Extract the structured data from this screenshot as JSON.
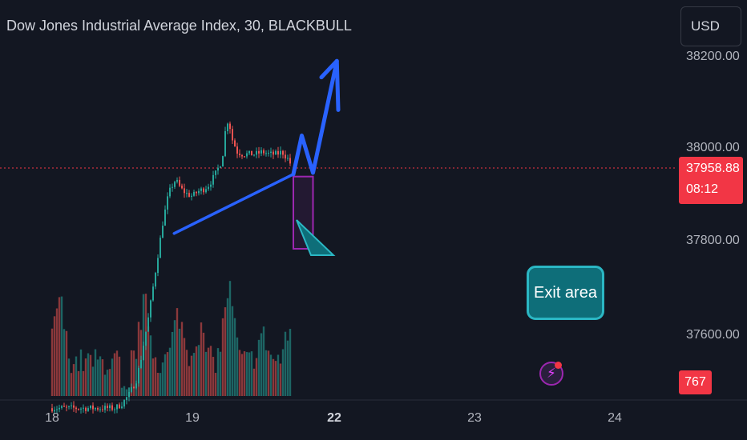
{
  "header": {
    "title": "Dow Jones Industrial Average Index, 30, BLACKBULL"
  },
  "currency_button": {
    "label": "USD"
  },
  "price_axis": {
    "ticks": [
      "38200.00",
      "38000.00",
      "37800.00",
      "37600.00"
    ]
  },
  "last_price": {
    "value": "37958.88",
    "countdown": "08:12"
  },
  "volume_label": {
    "value": "767"
  },
  "time_axis": {
    "ticks": [
      {
        "label": "18",
        "bold": false
      },
      {
        "label": "19",
        "bold": false
      },
      {
        "label": "22",
        "bold": true
      },
      {
        "label": "23",
        "bold": false
      },
      {
        "label": "24",
        "bold": false
      }
    ]
  },
  "annotation": {
    "text": "Exit area"
  },
  "colors": {
    "background": "#131722",
    "up": "#26a69a",
    "down": "#ef5350",
    "trendline": "#2962ff",
    "exit_zone_border": "#9c27b0",
    "callout": "#0e6e79"
  },
  "chart_data": {
    "type": "candlestick",
    "title": "Dow Jones Industrial Average Index, 30, BLACKBULL",
    "y_axis_ticks": [
      38200,
      38000,
      37800,
      37600
    ],
    "ylim": [
      37450,
      38250
    ],
    "x_ticks": [
      "18",
      "19",
      "22",
      "23",
      "24"
    ],
    "last_price": 37958.88,
    "last_volume": 767,
    "price_path": [
      [
        0,
        37440
      ],
      [
        0.45,
        37440
      ],
      [
        0.5,
        37450
      ],
      [
        0.55,
        37470
      ],
      [
        0.6,
        37500
      ],
      [
        0.63,
        37540
      ],
      [
        0.66,
        37590
      ],
      [
        0.69,
        37640
      ],
      [
        0.71,
        37680
      ],
      [
        0.73,
        37720
      ],
      [
        0.75,
        37760
      ],
      [
        0.77,
        37800
      ],
      [
        0.79,
        37840
      ],
      [
        0.81,
        37870
      ],
      [
        0.83,
        37900
      ],
      [
        0.86,
        37920
      ],
      [
        0.88,
        37930
      ],
      [
        0.92,
        37910
      ],
      [
        0.96,
        37900
      ],
      [
        1.0,
        37895
      ],
      [
        1.04,
        37905
      ],
      [
        1.08,
        37910
      ],
      [
        1.12,
        37920
      ],
      [
        1.16,
        37940
      ],
      [
        1.2,
        37965
      ],
      [
        1.22,
        37990
      ],
      [
        1.24,
        38050
      ],
      [
        1.26,
        38060
      ],
      [
        1.28,
        38020
      ],
      [
        1.32,
        37990
      ],
      [
        1.36,
        37985
      ],
      [
        1.4,
        37985
      ],
      [
        1.45,
        37985
      ],
      [
        1.5,
        37990
      ],
      [
        1.55,
        37985
      ],
      [
        1.6,
        37985
      ],
      [
        1.64,
        37990
      ],
      [
        1.68,
        37975
      ],
      [
        1.71,
        37958.88
      ]
    ],
    "trendline": [
      [
        0.87,
        37815
      ],
      [
        1.72,
        37942
      ]
    ],
    "exit_zone": {
      "x_from": 1.72,
      "x_to": 1.86,
      "price_from": 37937,
      "price_to": 37782
    },
    "projection_path": [
      [
        1.72,
        37942
      ],
      [
        1.78,
        38025
      ],
      [
        1.86,
        37945
      ],
      [
        2.03,
        38185
      ]
    ],
    "arrow_head": [
      [
        1.92,
        38150
      ],
      [
        2.03,
        38185
      ],
      [
        2.04,
        38080
      ]
    ]
  }
}
